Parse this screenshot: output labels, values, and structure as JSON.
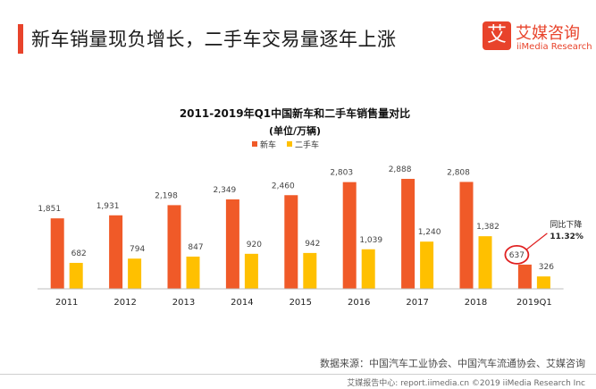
{
  "header": {
    "headline": "新车销量现负增长，二手车交易量逐年上涨",
    "accent_color": "#e8432b"
  },
  "logo": {
    "mark": "艾",
    "name_cn": "艾媒咨询",
    "name_en": "iiMedia Research"
  },
  "chart_data": {
    "type": "bar",
    "title": "2011-2019年Q1中国新车和二手车销售量对比",
    "subtitle": "(单位/万辆)",
    "legend_position": "top-center",
    "categories": [
      "2011",
      "2012",
      "2013",
      "2014",
      "2015",
      "2016",
      "2017",
      "2018",
      "2019Q1"
    ],
    "series": [
      {
        "name": "新车",
        "color": "#f05a28",
        "values": [
          1851,
          1931,
          2198,
          2349,
          2460,
          2803,
          2888,
          2808,
          637
        ]
      },
      {
        "name": "二手车",
        "color": "#ffc000",
        "values": [
          682,
          794,
          847,
          920,
          942,
          1039,
          1240,
          1382,
          326
        ]
      }
    ],
    "value_labels": {
      "新车": [
        "1,851",
        "1,931",
        "2,198",
        "2,349",
        "2,460",
        "2,803",
        "2,888",
        "2,808",
        "637"
      ],
      "二手车": [
        "682",
        "794",
        "847",
        "920",
        "942",
        "1,039",
        "1,240",
        "1,382",
        "326"
      ]
    },
    "ylim": [
      0,
      3100
    ],
    "grid": false,
    "annotation": {
      "category": "2019Q1",
      "series": "新车",
      "line1": "同比下降",
      "line2": "11.32%",
      "highlight_color": "#e02020"
    }
  },
  "footer": {
    "source": "数据来源：中国汽车工业协会、中国汽车流通协会、艾媒咨询",
    "copyright": "艾媒报告中心: report.iimedia.cn ©2019  iiMedia Research Inc"
  }
}
